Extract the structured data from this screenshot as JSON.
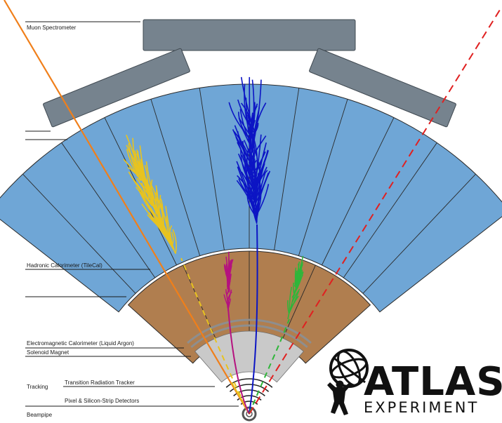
{
  "labels": {
    "muon": "Muon Spectrometer",
    "hadronic": "Hadronic Calorimeter (TileCal)",
    "em": "Electromagnetic Calorimeter (Liquid Argon)",
    "solenoid": "Solenoid Magnet",
    "tracking": "Tracking",
    "trt": "Transition Radiation Tracker",
    "pixel": "Pixel & Silicon-Strip Detectors",
    "beampipe": "Beampipe"
  },
  "logo": {
    "title": "ATLAS",
    "subtitle": "EXPERIMENT"
  },
  "colors": {
    "muon_chamber": "#76838e",
    "hadronic": "#6fa6d6",
    "em": "#b07e4f",
    "solenoid_region": "#c9c9c9",
    "track_orange": "#f07f1a",
    "track_red": "#e02020",
    "jet_blue": "#0c15c4",
    "jet_yellow": "#e8c31f",
    "jet_magenta": "#b5127f",
    "jet_green": "#2fb63a"
  }
}
